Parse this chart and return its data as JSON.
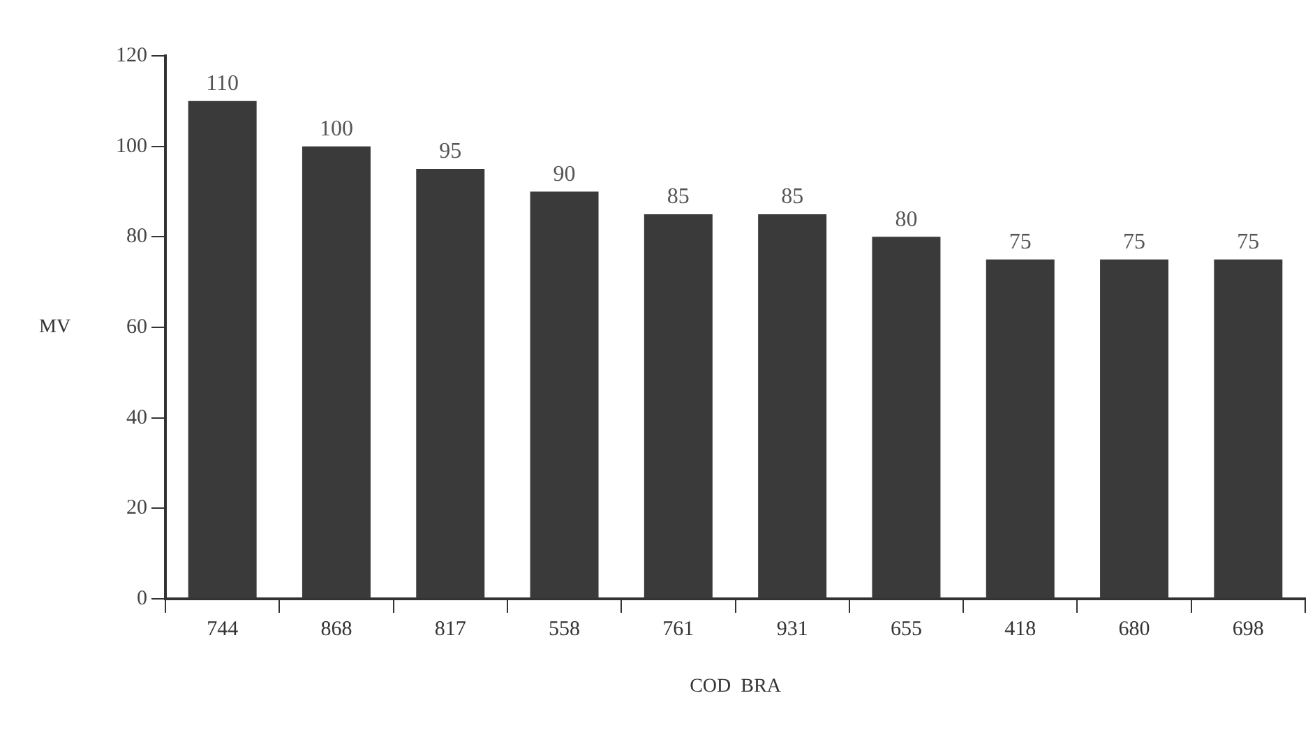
{
  "chart_data": {
    "type": "bar",
    "xlabel": "COD  BRA",
    "ylabel": "MV",
    "categories": [
      "744",
      "868",
      "817",
      "558",
      "761",
      "931",
      "655",
      "418",
      "680",
      "698"
    ],
    "values": [
      110,
      100,
      95,
      90,
      85,
      85,
      80,
      75,
      75,
      75
    ],
    "color": "#3a3a3a",
    "ylim": [
      0,
      120
    ],
    "yticks": [
      0,
      20,
      40,
      60,
      80,
      100,
      120
    ],
    "grid": false,
    "data_labels": true
  }
}
